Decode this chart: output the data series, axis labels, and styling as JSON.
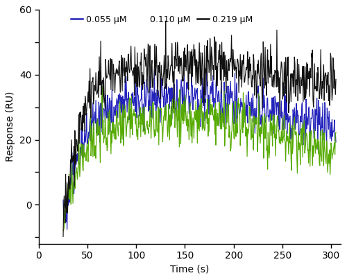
{
  "title": "",
  "xlabel": "Time (s)",
  "ylabel": "Response (RU)",
  "xlim": [
    0,
    310
  ],
  "ylim": [
    -12,
    60
  ],
  "xticks": [
    0,
    50,
    100,
    150,
    200,
    250,
    300
  ],
  "ytick_labels": [
    "",
    "0",
    "",
    "20",
    "",
    "40",
    "",
    "60"
  ],
  "ytick_vals": [
    -10,
    0,
    10,
    20,
    30,
    40,
    50,
    60
  ],
  "legend": [
    {
      "label": "0.055 μM",
      "color": "#2222bb",
      "show_line": true
    },
    {
      "label": "0.110 μM",
      "color": "#55aa00",
      "show_line": false
    },
    {
      "label": "0.219 μM",
      "color": "#111111",
      "show_line": true
    }
  ],
  "t_start": 25,
  "t_assoc_end": 185,
  "t_end": 305,
  "n_points": 560,
  "curves": [
    {
      "color": "#2222bb",
      "baseline": -8,
      "plateau": 33,
      "dissoc_end": 17,
      "noise": 3.5,
      "tau_assoc": 20.0,
      "tau_diss": 150.0,
      "seed": 101
    },
    {
      "color": "#55aa00",
      "baseline": -5,
      "plateau": 27,
      "dissoc_end": 10,
      "noise": 4.0,
      "tau_assoc": 20.0,
      "tau_diss": 130.0,
      "seed": 202
    },
    {
      "color": "#111111",
      "baseline": -6,
      "plateau": 43,
      "dissoc_end": 30,
      "noise": 4.5,
      "tau_assoc": 18.0,
      "tau_diss": 160.0,
      "seed": 303
    }
  ]
}
